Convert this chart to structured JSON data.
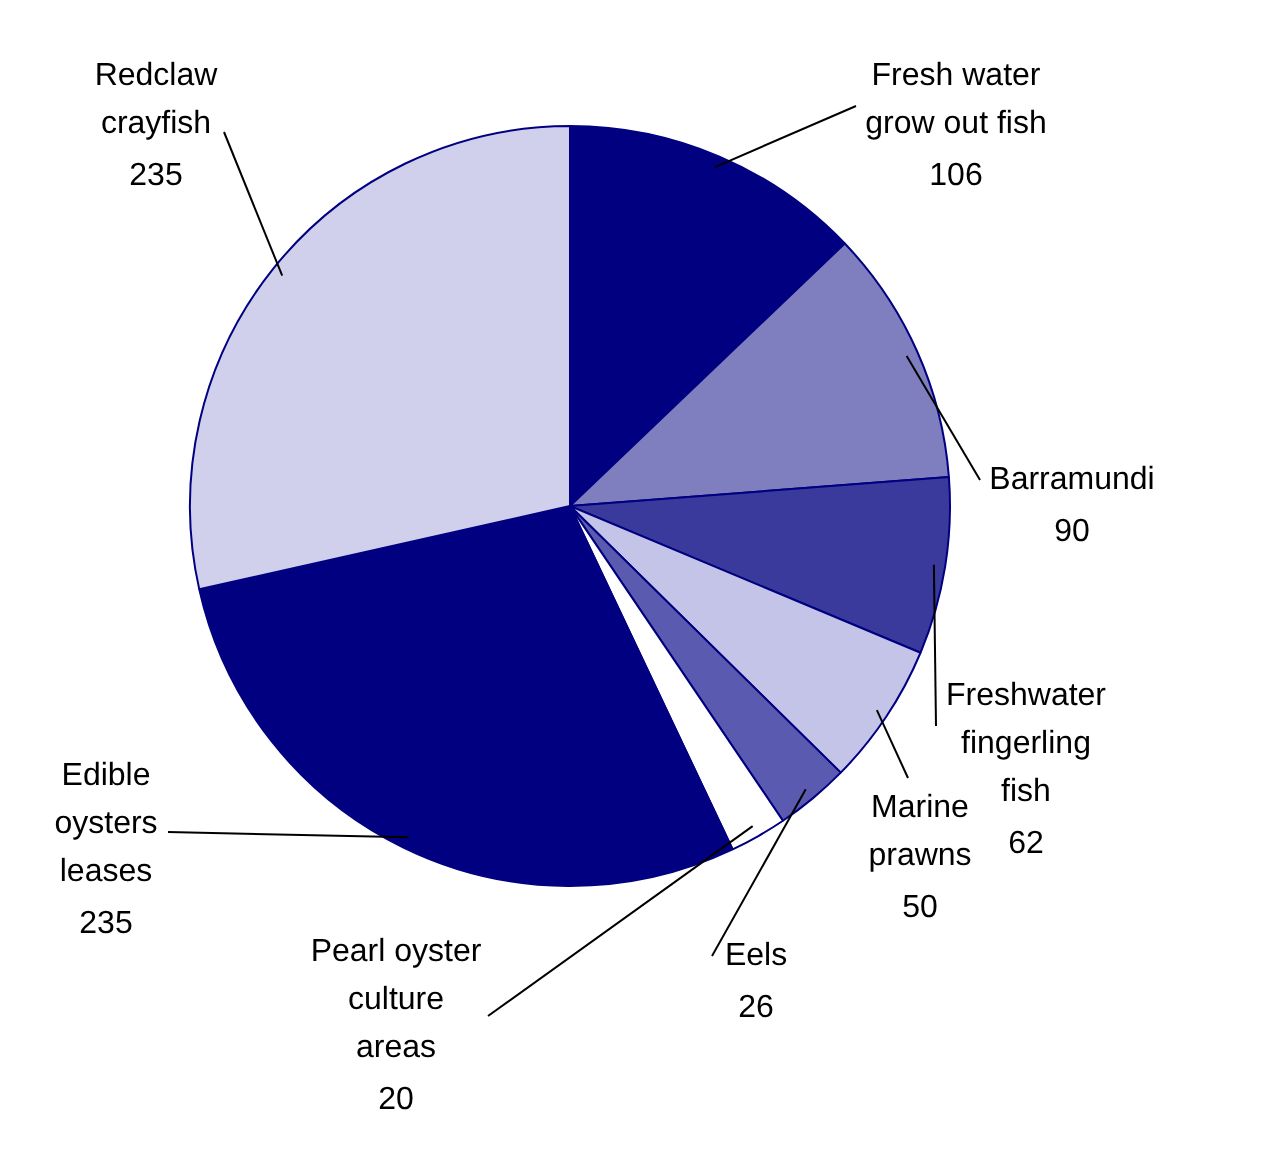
{
  "chart_data": {
    "type": "pie",
    "categories": [
      "Fresh water grow out fish",
      "Barramundi",
      "Freshwater fingerling fish",
      "Marine prawns",
      "Eels",
      "Pearl oyster culture areas",
      "Edible oysters leases",
      "Redclaw crayfish"
    ],
    "values": [
      106,
      90,
      62,
      50,
      26,
      20,
      235,
      235
    ],
    "colors": [
      "#000080",
      "#7f7fc0",
      "#3a3a9c",
      "#c4c4e8",
      "#5a5ab0",
      "#ffffff",
      "#000080",
      "#d0d0ec"
    ],
    "data_labels": true,
    "legend": false
  }
}
